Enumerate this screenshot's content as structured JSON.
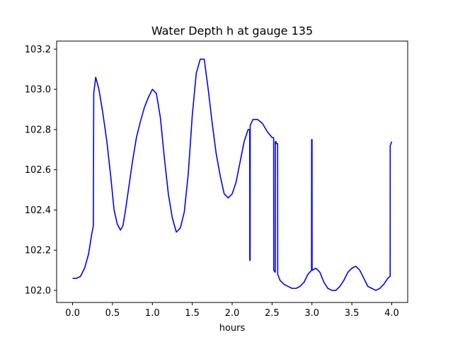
{
  "chart_data": {
    "type": "line",
    "title": "Water Depth h at gauge 135",
    "xlabel": "hours",
    "ylabel": "",
    "xlim": [
      -0.2,
      4.2
    ],
    "ylim": [
      101.94,
      103.24
    ],
    "x_ticks": [
      0.0,
      0.5,
      1.0,
      1.5,
      2.0,
      2.5,
      3.0,
      3.5,
      4.0
    ],
    "x_tick_labels": [
      "0.0",
      "0.5",
      "1.0",
      "1.5",
      "2.0",
      "2.5",
      "3.0",
      "3.5",
      "4.0"
    ],
    "y_ticks": [
      102.0,
      102.2,
      102.4,
      102.6,
      102.8,
      103.0,
      103.2
    ],
    "y_tick_labels": [
      "102.0",
      "102.2",
      "102.4",
      "102.6",
      "102.8",
      "103.0",
      "103.2"
    ],
    "grid": false,
    "legend": "none",
    "series": [
      {
        "color": "#0000ff",
        "x": [
          0.0,
          0.05,
          0.1,
          0.15,
          0.2,
          0.24,
          0.26,
          0.265,
          0.29,
          0.33,
          0.38,
          0.43,
          0.48,
          0.52,
          0.56,
          0.6,
          0.63,
          0.66,
          0.7,
          0.75,
          0.8,
          0.85,
          0.9,
          0.95,
          1.0,
          1.05,
          1.1,
          1.15,
          1.2,
          1.25,
          1.3,
          1.35,
          1.4,
          1.45,
          1.5,
          1.55,
          1.6,
          1.65,
          1.7,
          1.75,
          1.8,
          1.85,
          1.9,
          1.95,
          2.0,
          2.05,
          2.1,
          2.15,
          2.2,
          2.22,
          2.221,
          2.225,
          2.226,
          2.26,
          2.32,
          2.38,
          2.44,
          2.5,
          2.52,
          2.521,
          2.54,
          2.541,
          2.55,
          2.551,
          2.57,
          2.571,
          2.6,
          2.65,
          2.7,
          2.75,
          2.8,
          2.85,
          2.9,
          2.95,
          2.995,
          2.996,
          3.001,
          3.002,
          3.05,
          3.1,
          3.15,
          3.2,
          3.25,
          3.3,
          3.35,
          3.4,
          3.45,
          3.5,
          3.55,
          3.6,
          3.65,
          3.7,
          3.75,
          3.8,
          3.85,
          3.9,
          3.95,
          3.98,
          3.981,
          4.0
        ],
        "y": [
          102.06,
          102.06,
          102.07,
          102.11,
          102.18,
          102.28,
          102.32,
          102.98,
          103.06,
          103.0,
          102.88,
          102.74,
          102.56,
          102.4,
          102.33,
          102.3,
          102.32,
          102.39,
          102.5,
          102.64,
          102.76,
          102.84,
          102.91,
          102.96,
          103.0,
          102.98,
          102.86,
          102.66,
          102.48,
          102.36,
          102.29,
          102.31,
          102.39,
          102.58,
          102.87,
          103.08,
          103.15,
          103.15,
          103.0,
          102.83,
          102.68,
          102.57,
          102.48,
          102.46,
          102.48,
          102.54,
          102.64,
          102.74,
          102.8,
          102.8,
          102.15,
          102.15,
          102.82,
          102.85,
          102.85,
          102.83,
          102.79,
          102.76,
          102.76,
          102.1,
          102.09,
          102.74,
          102.74,
          102.73,
          102.73,
          102.08,
          102.05,
          102.03,
          102.02,
          102.01,
          102.01,
          102.02,
          102.04,
          102.08,
          102.1,
          102.75,
          102.75,
          102.1,
          102.11,
          102.09,
          102.04,
          102.01,
          102.0,
          102.0,
          102.02,
          102.05,
          102.09,
          102.11,
          102.12,
          102.1,
          102.06,
          102.02,
          102.01,
          102.0,
          102.01,
          102.03,
          102.06,
          102.07,
          102.72,
          102.74
        ]
      }
    ]
  }
}
